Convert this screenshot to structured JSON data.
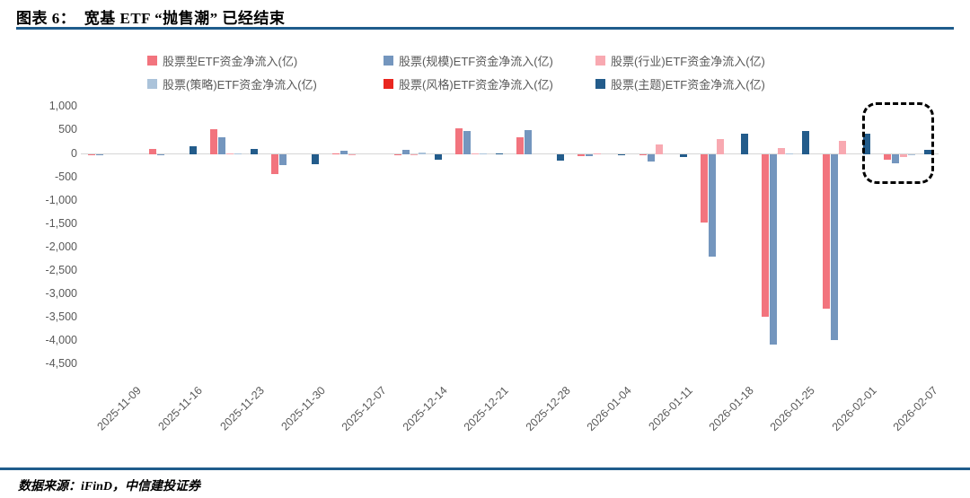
{
  "header": {
    "title": "图表 6：  宽基 ETF “抛售潮” 已经结束"
  },
  "footer": {
    "source": "数据来源：iFinD，中信建投证券"
  },
  "chart_data": {
    "type": "bar",
    "title": "宽基ETF“抛售潮”已经结束",
    "xlabel": "",
    "ylabel": "",
    "unit": "亿",
    "ylim": [
      -4500,
      1000
    ],
    "ytick_step": 500,
    "yticks": [
      1000,
      500,
      0,
      -500,
      -1000,
      -1500,
      -2000,
      -2500,
      -3000,
      -3500,
      -4000,
      -4500
    ],
    "grid": false,
    "legend_position": "top",
    "categories": [
      "2025-11-09",
      "2025-11-16",
      "2025-11-23",
      "2025-11-30",
      "2025-12-07",
      "2025-12-14",
      "2025-12-21",
      "2025-12-28",
      "2026-01-04",
      "2026-01-11",
      "2026-01-18",
      "2026-01-25",
      "2026-02-01",
      "2026-02-07"
    ],
    "series": [
      {
        "name": "股票型ETF资金净流入(亿)",
        "color": "#F2747E",
        "values": [
          -15,
          115,
          535,
          -420,
          15,
          -20,
          560,
          370,
          -30,
          -10,
          -1460,
          -3460,
          -3300,
          -120
        ]
      },
      {
        "name": "股票(规模)ETF资金净流入(亿)",
        "color": "#7496BE",
        "values": [
          -15,
          -15,
          370,
          -230,
          70,
          100,
          500,
          510,
          -45,
          -160,
          -2180,
          -4060,
          -3970,
          -185
        ]
      },
      {
        "name": "股票(行业)ETF资金净流入(亿)",
        "color": "#F8A9B1",
        "values": [
          0,
          0,
          20,
          0,
          -10,
          -25,
          15,
          0,
          25,
          210,
          325,
          130,
          290,
          -60
        ]
      },
      {
        "name": "股票(策略)ETF资金净流入(亿)",
        "color": "#ABC3DA",
        "values": [
          0,
          0,
          15,
          0,
          0,
          40,
          15,
          0,
          0,
          0,
          0,
          15,
          0,
          -10
        ]
      },
      {
        "name": "股票(风格)ETF资金净流入(亿)",
        "color": "#E9261F",
        "values": [
          0,
          0,
          0,
          0,
          0,
          0,
          0,
          0,
          0,
          0,
          0,
          0,
          0,
          0
        ]
      },
      {
        "name": "股票(主题)ETF资金净流入(亿)",
        "color": "#235C8B",
        "values": [
          0,
          165,
          115,
          -205,
          0,
          -110,
          20,
          -140,
          -15,
          -65,
          440,
          500,
          435,
          95
        ]
      }
    ],
    "annotation": {
      "type": "dashed-rounded-box",
      "highlighted_category": "2026-02-07"
    }
  }
}
